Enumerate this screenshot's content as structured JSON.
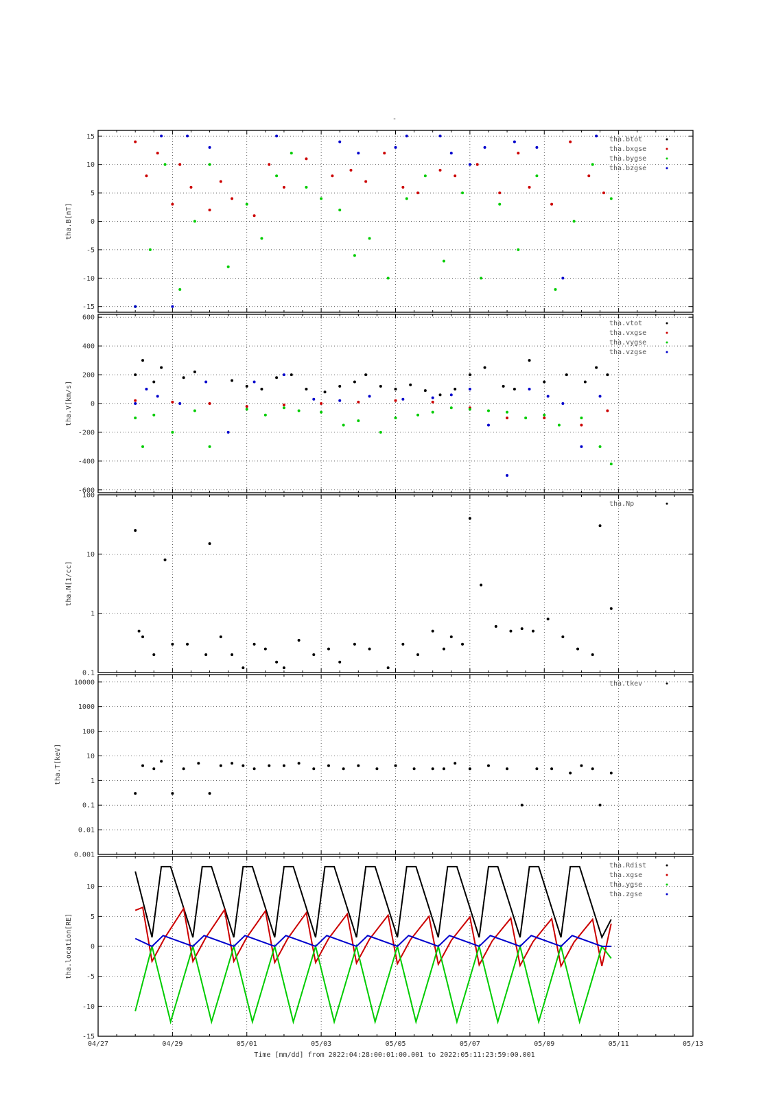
{
  "title": "-",
  "x_axis": {
    "tick_labels": [
      "04/27",
      "04/29",
      "05/01",
      "05/03",
      "05/05",
      "05/07",
      "05/09",
      "05/11",
      "05/13"
    ],
    "title": "Time [mm/dd]  from 2022:04:28:00:01:00.001  to  2022:05:11:23:59:00.001",
    "range_days": [
      0,
      16
    ]
  },
  "colors": {
    "black": "#000000",
    "red": "#cc0000",
    "green": "#00cc00",
    "blue": "#0000cc"
  },
  "chart_data": [
    {
      "type": "scatter",
      "ylabel": "tha.B[nT]",
      "ylim": [
        -16,
        16
      ],
      "yticks": [
        15,
        10,
        5,
        0,
        -5,
        -10,
        -15
      ],
      "legend": [
        "tha.btot",
        "tha.bxgse",
        "tha.bygse",
        "tha.bzgse"
      ],
      "legend_placement": "top-right",
      "grid": true,
      "series": [
        {
          "name": "tha.bxgse",
          "color": "red",
          "x": [
            1.0,
            1.3,
            1.6,
            2.0,
            2.2,
            2.5,
            3.0,
            3.3,
            3.6,
            4.2,
            4.6,
            5.0,
            5.6,
            6.3,
            6.8,
            7.2,
            7.7,
            8.2,
            8.6,
            9.2,
            9.6,
            10.2,
            10.8,
            11.3,
            11.6,
            12.2,
            12.7,
            13.2,
            13.6
          ],
          "y": [
            14,
            8,
            12,
            3,
            10,
            6,
            2,
            7,
            4,
            1,
            10,
            6,
            11,
            8,
            9,
            7,
            12,
            6,
            5,
            9,
            8,
            10,
            5,
            12,
            6,
            3,
            14,
            8,
            5
          ]
        },
        {
          "name": "tha.bygse",
          "color": "green",
          "x": [
            1.0,
            1.4,
            1.8,
            2.2,
            2.6,
            3.0,
            3.5,
            4.0,
            4.4,
            4.8,
            5.2,
            5.6,
            6.0,
            6.5,
            6.9,
            7.3,
            7.8,
            8.3,
            8.8,
            9.3,
            9.8,
            10.3,
            10.8,
            11.3,
            11.8,
            12.3,
            12.8,
            13.3,
            13.8
          ],
          "y": [
            -15,
            -5,
            10,
            -12,
            0,
            10,
            -8,
            3,
            -3,
            8,
            12,
            6,
            4,
            2,
            -6,
            -3,
            -10,
            4,
            8,
            -7,
            5,
            -10,
            3,
            -5,
            8,
            -12,
            0,
            10,
            4
          ]
        },
        {
          "name": "tha.bzgse",
          "color": "blue",
          "x": [
            1.0,
            1.7,
            2.0,
            2.4,
            3.0,
            4.8,
            6.5,
            7.0,
            8.0,
            8.3,
            9.2,
            9.5,
            10.0,
            10.4,
            11.2,
            11.8,
            12.5,
            13.4
          ],
          "y": [
            -15,
            15,
            -15,
            15,
            13,
            15,
            14,
            12,
            13,
            15,
            15,
            12,
            10,
            13,
            14,
            13,
            -10,
            15
          ]
        },
        {
          "name": "tha.btot",
          "color": "black",
          "x": [],
          "y": []
        }
      ]
    },
    {
      "type": "scatter",
      "ylabel": "tha.V[km/s]",
      "ylim": [
        -620,
        620
      ],
      "yticks": [
        600,
        400,
        200,
        0,
        -200,
        -400,
        -600
      ],
      "legend": [
        "tha.vtot",
        "tha.vxgse",
        "tha.vygse",
        "tha.vzgse"
      ],
      "legend_placement": "top-right",
      "grid": true,
      "series": [
        {
          "name": "tha.vtot",
          "color": "black",
          "x": [
            1.0,
            1.2,
            1.5,
            1.7,
            2.3,
            2.6,
            3.6,
            4.0,
            4.4,
            4.8,
            5.2,
            5.6,
            6.1,
            6.5,
            6.9,
            7.2,
            7.6,
            8.0,
            8.4,
            8.8,
            9.2,
            9.6,
            10.0,
            10.4,
            10.9,
            11.2,
            11.6,
            12.0,
            12.6,
            13.1,
            13.4,
            13.7
          ],
          "y": [
            200,
            300,
            150,
            250,
            180,
            220,
            160,
            120,
            100,
            180,
            200,
            100,
            80,
            120,
            150,
            200,
            120,
            100,
            130,
            90,
            60,
            100,
            200,
            250,
            120,
            100,
            300,
            150,
            200,
            150,
            250,
            200
          ]
        },
        {
          "name": "tha.vxgse",
          "color": "red",
          "x": [
            1.0,
            2.0,
            3.0,
            4.0,
            5.0,
            6.0,
            7.0,
            8.0,
            9.0,
            10.0,
            11.0,
            12.0,
            13.0,
            13.7
          ],
          "y": [
            20,
            10,
            0,
            -20,
            -10,
            0,
            10,
            20,
            10,
            -30,
            -100,
            -100,
            -150,
            -50
          ]
        },
        {
          "name": "tha.vygse",
          "color": "green",
          "x": [
            1.0,
            1.2,
            1.5,
            2.0,
            2.6,
            3.0,
            4.0,
            4.5,
            5.0,
            5.4,
            6.0,
            6.6,
            7.0,
            7.6,
            8.0,
            8.6,
            9.0,
            9.5,
            10.0,
            10.5,
            11.0,
            11.5,
            12.0,
            12.4,
            13.0,
            13.5,
            13.8
          ],
          "y": [
            -100,
            -300,
            -80,
            -200,
            -50,
            -300,
            -40,
            -80,
            -30,
            -50,
            -60,
            -150,
            -120,
            -200,
            -100,
            -80,
            -60,
            -30,
            -40,
            -50,
            -60,
            -100,
            -80,
            -150,
            -100,
            -300,
            -420
          ]
        },
        {
          "name": "tha.vzgse",
          "color": "blue",
          "x": [
            1.0,
            1.3,
            1.6,
            2.2,
            2.9,
            3.5,
            4.2,
            5.0,
            5.8,
            6.5,
            7.3,
            8.2,
            9.0,
            9.5,
            10.0,
            10.5,
            11.0,
            11.6,
            12.1,
            12.5,
            13.0,
            13.5
          ],
          "y": [
            0,
            100,
            50,
            0,
            150,
            -200,
            150,
            200,
            30,
            20,
            50,
            30,
            40,
            60,
            100,
            -150,
            -500,
            100,
            50,
            0,
            -300,
            50
          ]
        }
      ]
    },
    {
      "type": "scatter",
      "ylabel": "tha.N[1/cc]",
      "yscale": "log",
      "ylim": [
        0.1,
        100
      ],
      "yticks": [
        100,
        10,
        1,
        0.1
      ],
      "legend": [
        "tha.Np"
      ],
      "legend_placement": "top-right",
      "grid": true,
      "series": [
        {
          "name": "tha.Np",
          "color": "black",
          "x": [
            1.0,
            1.1,
            1.2,
            1.5,
            1.8,
            2.0,
            2.4,
            2.9,
            3.0,
            3.3,
            3.6,
            3.9,
            4.2,
            4.5,
            4.8,
            5.0,
            5.4,
            5.8,
            6.2,
            6.5,
            6.9,
            7.3,
            7.8,
            8.2,
            8.6,
            9.0,
            9.3,
            9.5,
            9.8,
            10.0,
            10.3,
            10.7,
            11.1,
            11.4,
            11.7,
            12.1,
            12.5,
            12.9,
            13.3,
            13.5,
            13.8
          ],
          "y": [
            25,
            0.5,
            0.4,
            0.2,
            8,
            0.3,
            0.3,
            0.2,
            15,
            0.4,
            0.2,
            0.12,
            0.3,
            0.25,
            0.15,
            0.12,
            0.35,
            0.2,
            0.25,
            0.15,
            0.3,
            0.25,
            0.12,
            0.3,
            0.2,
            0.5,
            0.25,
            0.4,
            0.3,
            40,
            3,
            0.6,
            0.5,
            0.55,
            0.5,
            0.8,
            0.4,
            0.25,
            0.2,
            30,
            1.2
          ]
        }
      ]
    },
    {
      "type": "scatter",
      "ylabel": "tha.T[keV]",
      "yscale": "log",
      "ylim": [
        0.001,
        20000
      ],
      "yticks": [
        10000,
        1000,
        100,
        10,
        1,
        0.1,
        0.01,
        0.001
      ],
      "legend": [
        "tha.tkev"
      ],
      "legend_placement": "top-right",
      "grid": true,
      "series": [
        {
          "name": "tha.tkev",
          "color": "black",
          "x": [
            1.0,
            1.2,
            1.5,
            1.7,
            2.0,
            2.3,
            2.7,
            3.0,
            3.3,
            3.6,
            3.9,
            4.2,
            4.6,
            5.0,
            5.4,
            5.8,
            6.2,
            6.6,
            7.0,
            7.5,
            8.0,
            8.5,
            9.0,
            9.3,
            9.6,
            10.0,
            10.5,
            11.0,
            11.4,
            11.8,
            12.2,
            12.7,
            13.0,
            13.3,
            13.5,
            13.8
          ],
          "y": [
            0.3,
            4,
            3,
            6,
            0.3,
            3,
            5,
            0.3,
            4,
            5,
            4,
            3,
            4,
            4,
            5,
            3,
            4,
            3,
            4,
            3,
            4,
            3,
            3,
            3,
            5,
            3,
            4,
            3,
            0.1,
            3,
            3,
            2,
            4,
            3,
            0.1,
            2
          ]
        }
      ]
    },
    {
      "type": "line",
      "ylabel": "tha.location[RE]",
      "ylim": [
        -15,
        15
      ],
      "yticks": [
        10,
        5,
        0,
        -5,
        -10,
        -15
      ],
      "legend": [
        "tha.Rdist",
        "tha.xgse",
        "tha.ygse",
        "tha.zgse"
      ],
      "legend_placement": "top-right",
      "grid": true,
      "orbit_period_days": 1.1,
      "series": [
        {
          "name": "tha.Rdist",
          "color": "black",
          "x": [
            1.0,
            1.45,
            1.7,
            1.95,
            2.55,
            2.8,
            3.05,
            3.65,
            3.9,
            4.15,
            4.75,
            5.0,
            5.25,
            5.85,
            6.1,
            6.35,
            6.95,
            7.2,
            7.45,
            8.05,
            8.3,
            8.55,
            9.15,
            9.4,
            9.65,
            10.25,
            10.5,
            10.75,
            11.35,
            11.6,
            11.85,
            12.45,
            12.7,
            12.95,
            13.55,
            13.8
          ],
          "y": [
            12.5,
            1.5,
            13.3,
            13.3,
            1.5,
            13.3,
            13.3,
            1.5,
            13.3,
            13.3,
            1.5,
            13.3,
            13.3,
            1.5,
            13.3,
            13.3,
            1.5,
            13.3,
            13.3,
            1.5,
            13.3,
            13.3,
            1.5,
            13.3,
            13.3,
            1.5,
            13.3,
            13.3,
            1.5,
            13.3,
            13.3,
            1.5,
            13.3,
            13.3,
            1.5,
            4.5
          ]
        },
        {
          "name": "tha.xgse",
          "color": "red",
          "x": [
            1.0,
            1.2,
            1.45,
            1.8,
            2.3,
            2.55,
            2.9,
            3.4,
            3.65,
            4.0,
            4.5,
            4.75,
            5.1,
            5.6,
            5.85,
            6.2,
            6.7,
            6.95,
            7.3,
            7.8,
            8.05,
            8.4,
            8.9,
            9.15,
            9.5,
            10.0,
            10.25,
            10.6,
            11.1,
            11.35,
            11.7,
            12.2,
            12.45,
            12.8,
            13.3,
            13.55,
            13.8
          ],
          "y": [
            6.0,
            6.5,
            -2.5,
            1.5,
            6.3,
            -2.5,
            1.5,
            6.1,
            -2.5,
            1.5,
            5.9,
            -2.7,
            1.3,
            5.6,
            -2.7,
            1.3,
            5.4,
            -2.8,
            1.2,
            5.2,
            -2.9,
            1.1,
            5.0,
            -3.0,
            1.0,
            4.9,
            -3.1,
            0.9,
            4.7,
            -3.2,
            0.8,
            4.6,
            -3.3,
            0.7,
            4.5,
            -3.3,
            3.8
          ]
        },
        {
          "name": "tha.ygse",
          "color": "green",
          "x": [
            1.0,
            1.45,
            1.95,
            2.55,
            3.05,
            3.65,
            4.15,
            4.75,
            5.25,
            5.85,
            6.35,
            6.95,
            7.45,
            8.05,
            8.55,
            9.15,
            9.65,
            10.25,
            10.75,
            11.35,
            11.85,
            12.45,
            12.95,
            13.55,
            13.8
          ],
          "y": [
            -10.8,
            0,
            -12.6,
            0,
            -12.6,
            0,
            -12.6,
            0,
            -12.6,
            0,
            -12.6,
            0,
            -12.6,
            0,
            -12.6,
            0,
            -12.6,
            0,
            -12.6,
            0,
            -12.6,
            0,
            -12.6,
            0,
            -2.0
          ]
        },
        {
          "name": "tha.zgse",
          "color": "blue",
          "x": [
            1.0,
            1.45,
            1.75,
            2.55,
            2.85,
            3.65,
            3.95,
            4.75,
            5.05,
            5.85,
            6.15,
            6.95,
            7.25,
            8.05,
            8.35,
            9.15,
            9.45,
            10.25,
            10.55,
            11.35,
            11.65,
            12.45,
            12.75,
            13.55,
            13.8
          ],
          "y": [
            1.3,
            0,
            1.8,
            0,
            1.8,
            0,
            1.8,
            0,
            1.8,
            0,
            1.8,
            0,
            1.8,
            0,
            1.8,
            0,
            1.8,
            0,
            1.8,
            0,
            1.8,
            0,
            1.8,
            0,
            0
          ]
        }
      ]
    }
  ]
}
